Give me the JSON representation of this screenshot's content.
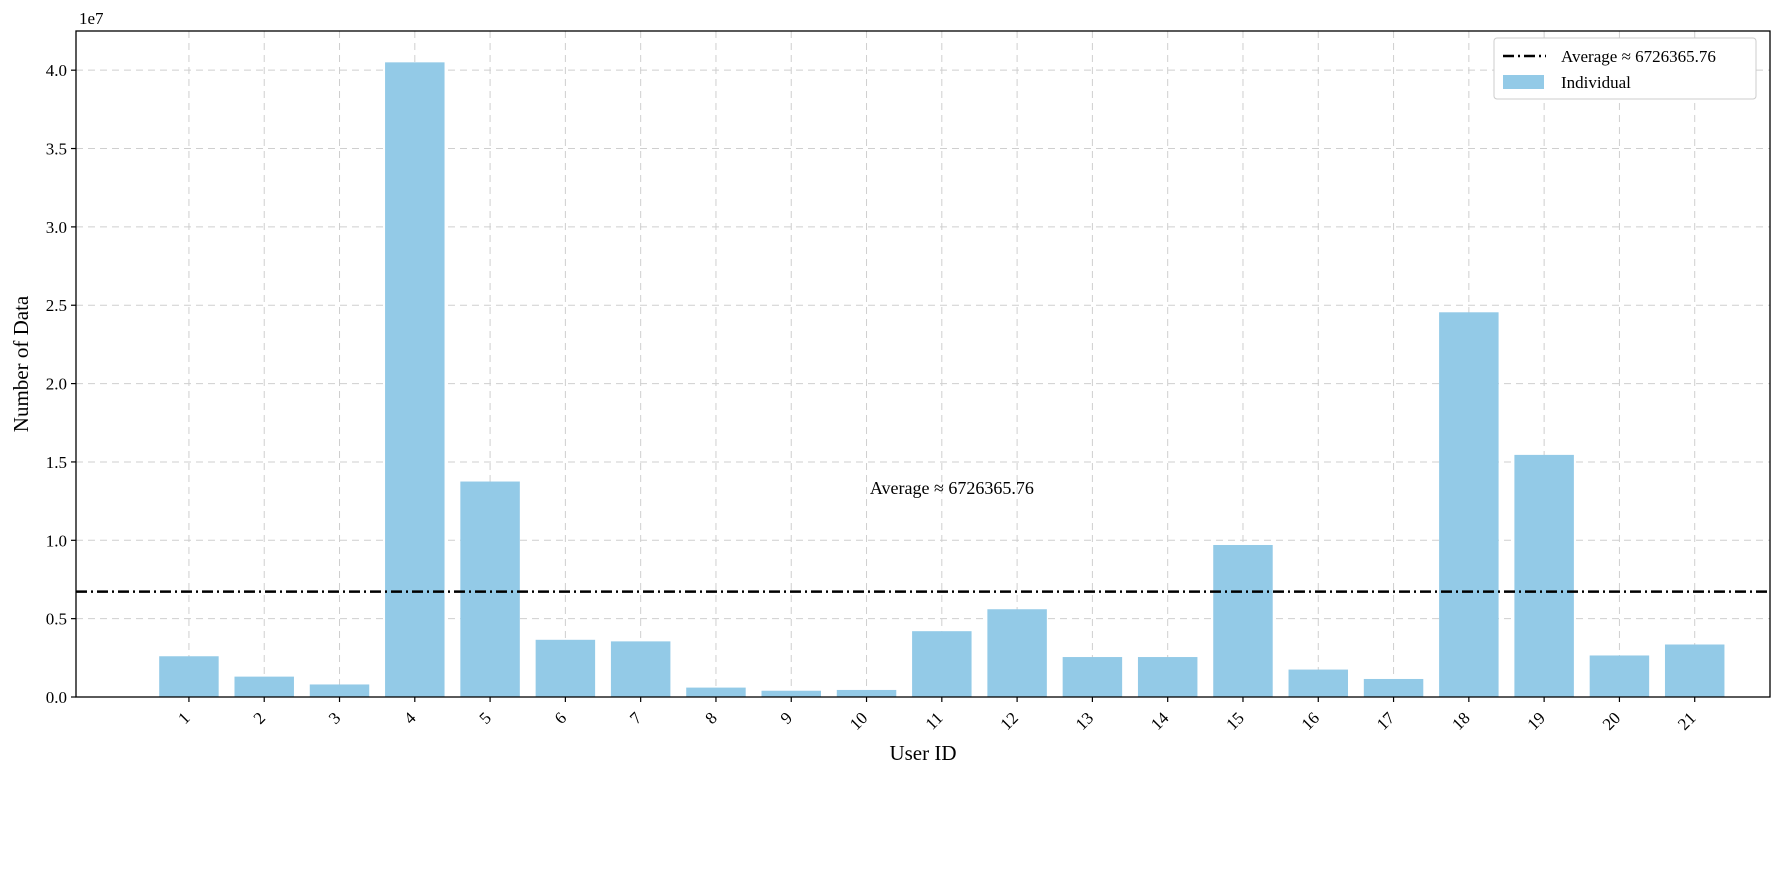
{
  "chart_data": {
    "type": "bar",
    "title": "",
    "xlabel": "User ID",
    "ylabel": "Number of Data",
    "y_offset_label": "1e7",
    "categories": [
      "1",
      "2",
      "3",
      "4",
      "5",
      "6",
      "7",
      "8",
      "9",
      "10",
      "11",
      "12",
      "13",
      "14",
      "15",
      "16",
      "17",
      "18",
      "19",
      "20",
      "21"
    ],
    "series": [
      {
        "name": "Individual",
        "color": "#93cae7",
        "values": [
          2600000,
          1300000,
          800000,
          40500000,
          13750000,
          3650000,
          3550000,
          600000,
          400000,
          450000,
          4200000,
          5600000,
          2550000,
          2550000,
          9700000,
          1750000,
          1150000,
          24550000,
          15450000,
          2650000,
          3350000
        ]
      }
    ],
    "average": {
      "value": 6726365.76,
      "label": "Average ≈ 6726365.76",
      "color": "#000000",
      "style": "dash-dot"
    },
    "annotation": "Average ≈ 6726365.76",
    "yticks": [
      0,
      5000000,
      10000000,
      15000000,
      20000000,
      25000000,
      30000000,
      35000000,
      40000000
    ],
    "ytick_labels": [
      "0.0",
      "0.5",
      "1.0",
      "1.5",
      "2.0",
      "2.5",
      "3.0",
      "3.5",
      "4.0"
    ],
    "ylim": [
      0,
      42500000
    ],
    "grid": true,
    "legend_position": "top-right",
    "x_tick_rotation": "45deg"
  }
}
